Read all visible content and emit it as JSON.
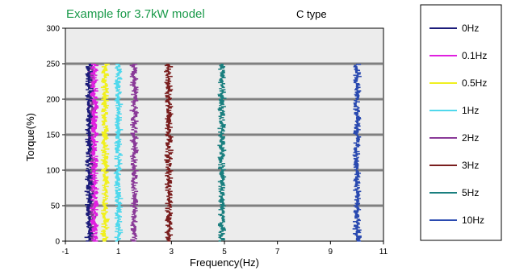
{
  "chart_data": {
    "type": "scatter",
    "title": "Example for 3.7kW model",
    "subtitle": "C type",
    "xlabel": "Frequency(Hz)",
    "ylabel": "Torque(%)",
    "xlim": [
      -1,
      11
    ],
    "ylim": [
      0,
      300
    ],
    "x_ticks": [
      "-1",
      "1",
      "3",
      "5",
      "7",
      "9",
      "11"
    ],
    "y_ticks": [
      "0",
      "50",
      "100",
      "150",
      "200",
      "250",
      "300"
    ],
    "grid_lines_y": [
      50,
      100,
      150,
      200,
      250
    ],
    "legend_position": "right",
    "series": [
      {
        "name": "0Hz",
        "color": "#1c1c7a",
        "x": -0.1,
        "y_min": 0,
        "y_max": 250
      },
      {
        "name": "0.1Hz",
        "color": "#e020e0",
        "x": 0.1,
        "y_min": 0,
        "y_max": 250
      },
      {
        "name": "0.5Hz",
        "color": "#f0f020",
        "x": 0.5,
        "y_min": 0,
        "y_max": 250
      },
      {
        "name": "1Hz",
        "color": "#50d8ec",
        "x": 1.0,
        "y_min": 0,
        "y_max": 250
      },
      {
        "name": "2Hz",
        "color": "#8a3a98",
        "x": 1.6,
        "y_min": 0,
        "y_max": 250
      },
      {
        "name": "3Hz",
        "color": "#7a1e1e",
        "x": 2.9,
        "y_min": 0,
        "y_max": 250
      },
      {
        "name": "5Hz",
        "color": "#1a7f7f",
        "x": 4.9,
        "y_min": 0,
        "y_max": 250
      },
      {
        "name": "10Hz",
        "color": "#2a4ab0",
        "x": 10.0,
        "y_min": 0,
        "y_max": 250
      }
    ],
    "extra_band": {
      "color": "#8a3a98",
      "x": 0.0,
      "y_min": 0,
      "y_max": 250
    }
  }
}
